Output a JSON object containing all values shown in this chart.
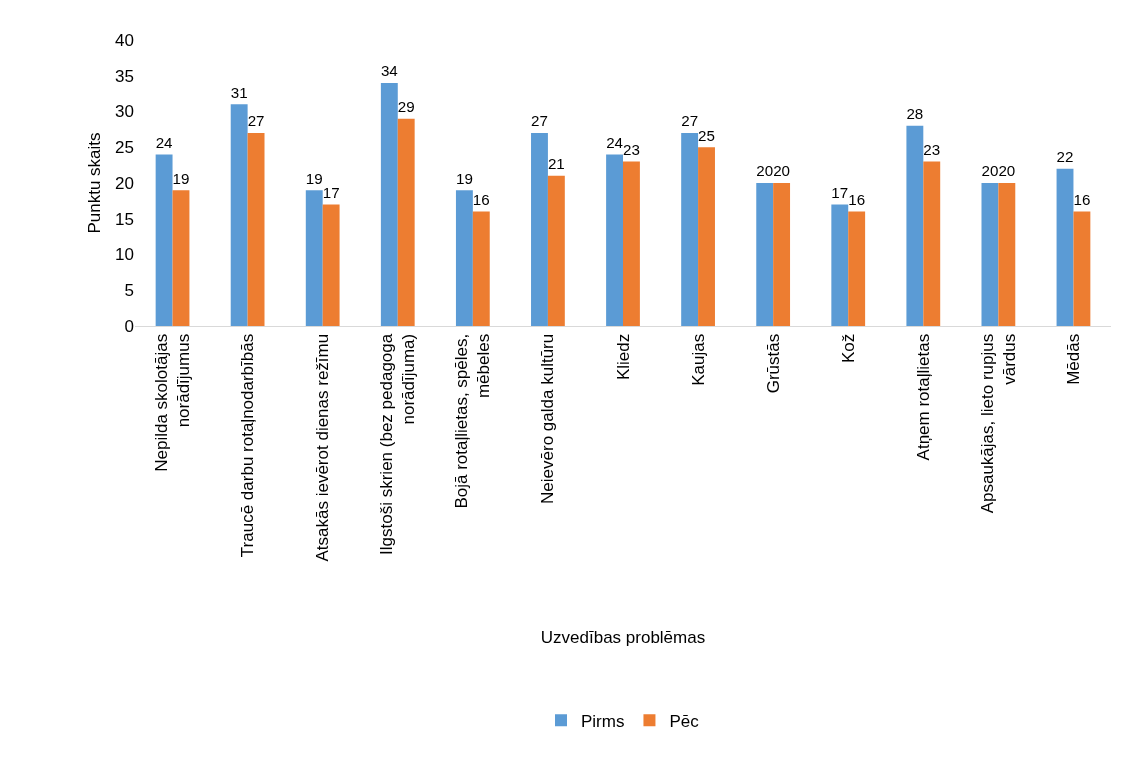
{
  "chart_data": {
    "type": "bar",
    "xlabel": "Uzvedības problēmas",
    "ylabel": "Punktu skaits",
    "categories": [
      "Nepilda skolotājas norādījumus",
      "Traucē darbu rotaļnodarbībās",
      "Atsakās ievērot dienas režīmu",
      "Ilgstoši skrien (bez pedagoga norādījuma)",
      "Bojā rotaļlietas, spēles, mēbeles",
      "Neievēro galda kultūru",
      "Kliedz",
      "Kaujas",
      "Grūstās",
      "Kož",
      "Atņem rotaļlietas",
      "Apsaukājas, lieto rupjus vārdus",
      "Mēdās"
    ],
    "series": [
      {
        "name": "Pirms",
        "color": "#5b9bd5",
        "values": [
          24,
          31,
          19,
          34,
          19,
          27,
          24,
          27,
          20,
          17,
          28,
          20,
          22
        ]
      },
      {
        "name": "Pēc",
        "color": "#ed7d31",
        "values": [
          19,
          27,
          17,
          29,
          16,
          21,
          23,
          25,
          20,
          16,
          23,
          20,
          16
        ]
      }
    ],
    "ylim": [
      0,
      40
    ],
    "yticks": [
      0,
      5,
      10,
      15,
      20,
      25,
      30,
      35,
      40
    ],
    "data_labels": true,
    "legend": "bottom"
  }
}
